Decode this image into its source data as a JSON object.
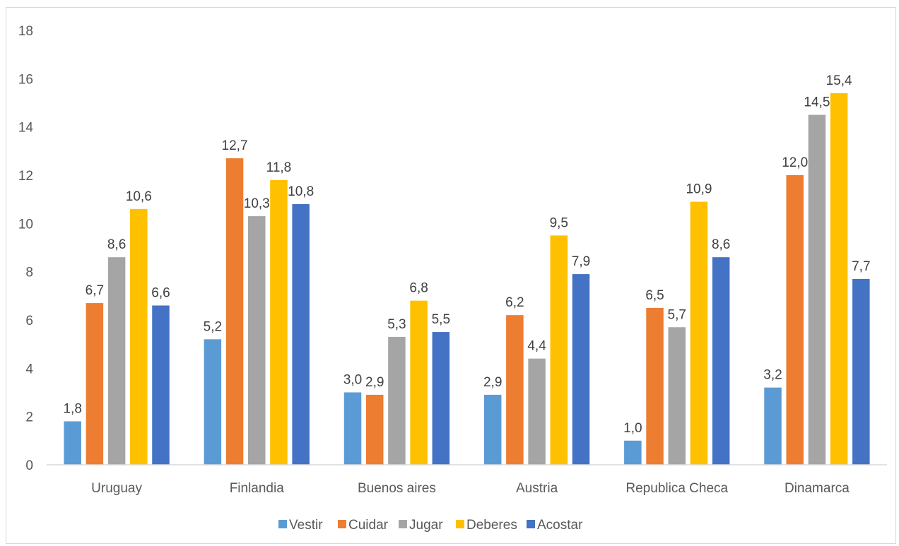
{
  "chart_data": {
    "type": "bar",
    "categories": [
      "Uruguay",
      "Finlandia",
      "Buenos aires",
      "Austria",
      "Republica Checa",
      "Dinamarca"
    ],
    "series": [
      {
        "name": "Vestir",
        "color": "#5b9bd5",
        "values": [
          1.8,
          5.2,
          3.0,
          2.9,
          1.0,
          3.2
        ],
        "labels": [
          "1,8",
          "5,2",
          "3,0",
          "2,9",
          "1,0",
          "3,2"
        ]
      },
      {
        "name": "Cuidar",
        "color": "#ed7d31",
        "values": [
          6.7,
          12.7,
          2.9,
          6.2,
          6.5,
          12.0
        ],
        "labels": [
          "6,7",
          "12,7",
          "2,9",
          "6,2",
          "6,5",
          "12,0"
        ]
      },
      {
        "name": "Jugar",
        "color": "#a5a5a5",
        "values": [
          8.6,
          10.3,
          5.3,
          4.4,
          5.7,
          14.5
        ],
        "labels": [
          "8,6",
          "10,3",
          "5,3",
          "4,4",
          "5,7",
          "14,5"
        ]
      },
      {
        "name": "Deberes",
        "color": "#ffc000",
        "values": [
          10.6,
          11.8,
          6.8,
          9.5,
          10.9,
          15.4
        ],
        "labels": [
          "10,6",
          "11,8",
          "6,8",
          "9,5",
          "10,9",
          "15,4"
        ]
      },
      {
        "name": "Acostar",
        "color": "#4472c4",
        "values": [
          6.6,
          10.8,
          5.5,
          7.9,
          8.6,
          7.7
        ],
        "labels": [
          "6,6",
          "10,8",
          "5,5",
          "7,9",
          "8,6",
          "7,7"
        ]
      }
    ],
    "ylim": [
      0,
      18
    ],
    "yticks": [
      "0",
      "2",
      "4",
      "6",
      "8",
      "10",
      "12",
      "14",
      "16",
      "18"
    ],
    "grid": false,
    "legend": "bottom"
  }
}
